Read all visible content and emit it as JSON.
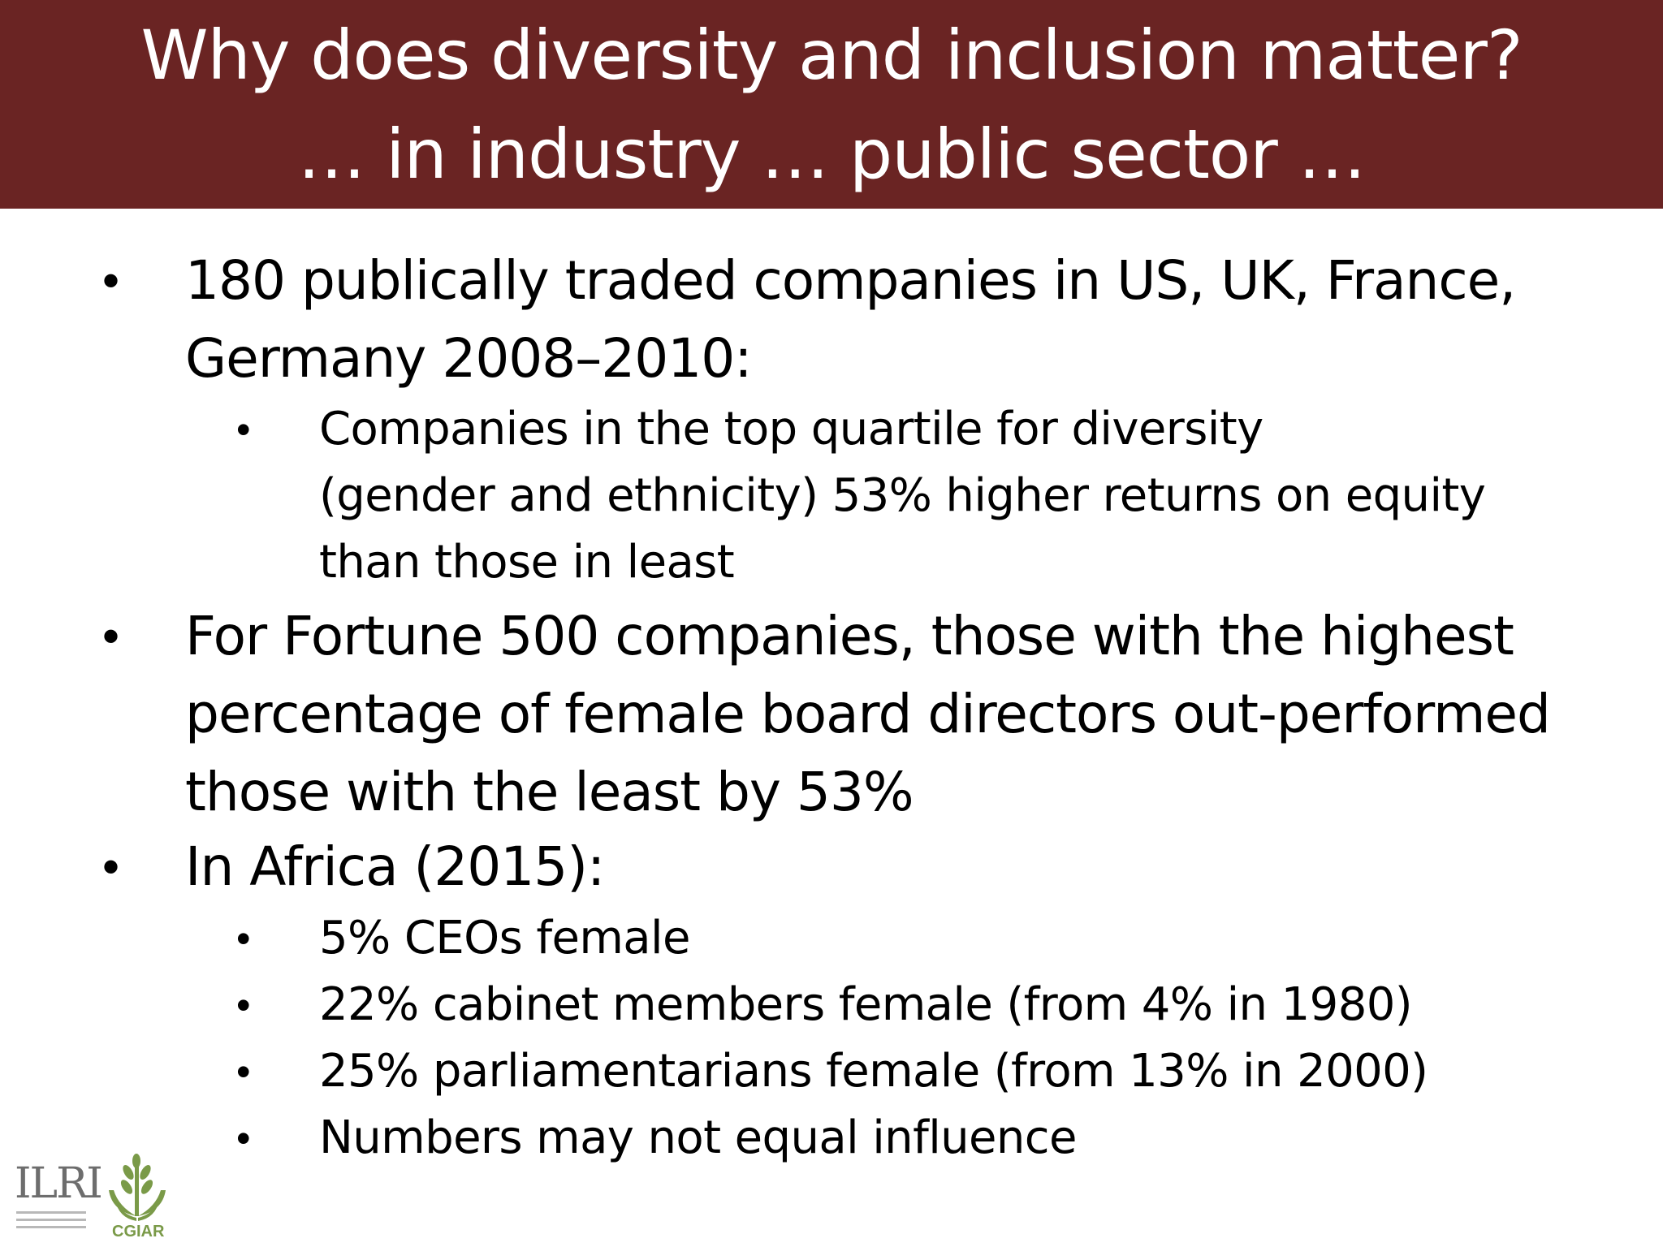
{
  "header": {
    "title_line_1": "Why does diversity and inclusion matter?",
    "title_line_2": "… in industry … public sector …",
    "background_color": "#6a2423"
  },
  "bullets": {
    "b1_line_1": "180 publically traded companies in US, UK, France,",
    "b1_line_2": "Germany 2008–2010:",
    "b1_sub1_line_1": "Companies in the top quartile for diversity",
    "b1_sub1_line_2": "(gender and ethnicity) 53% higher returns on equity",
    "b1_sub1_line_3": "than those in least",
    "b2_line_1": "For Fortune 500 companies, those with the highest",
    "b2_line_2": "percentage of female board directors out-performed",
    "b2_line_3": "those with the least by 53%",
    "b3_line_1": "In Africa (2015):",
    "b3_sub1": "5% CEOs female",
    "b3_sub2": "22% cabinet members female (from 4% in 1980)",
    "b3_sub3": "25% parliamentarians female (from 13% in 2000)",
    "b3_sub4": "Numbers may not equal influence",
    "bullet_glyph": "•"
  },
  "logos": {
    "ilri": "ILRI",
    "cgiar": "CGIAR",
    "ilri_color": "#6d6d6d",
    "cgiar_color": "#7a9a48",
    "cgiar_icon": "wheat-sprig-icon"
  }
}
